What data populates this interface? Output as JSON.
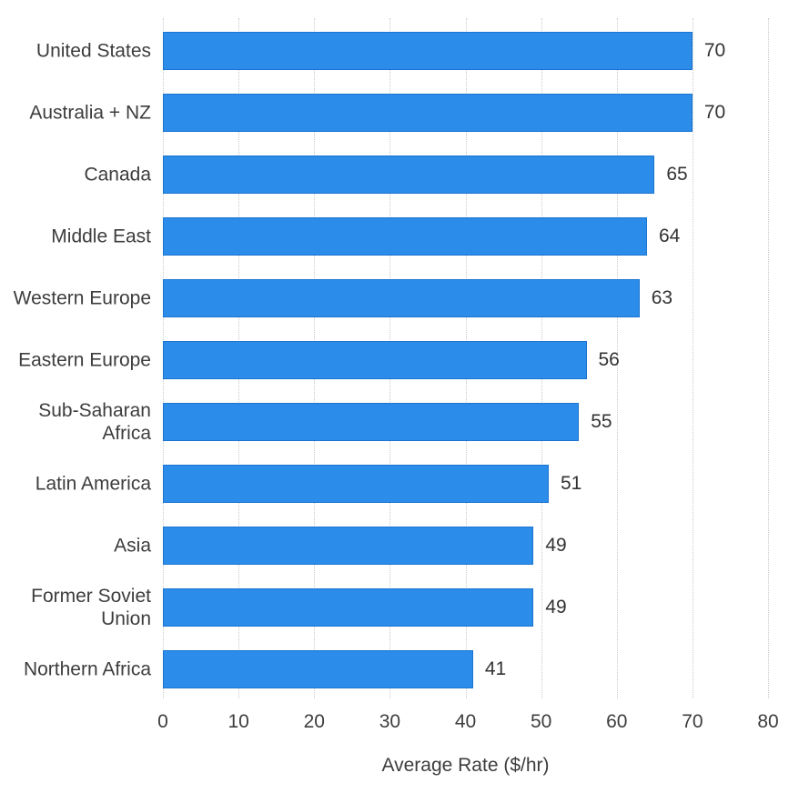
{
  "chart_data": {
    "type": "bar",
    "orientation": "horizontal",
    "categories": [
      "United States",
      "Australia + NZ",
      "Canada",
      "Middle East",
      "Western Europe",
      "Eastern Europe",
      "Sub-Saharan Africa",
      "Latin America",
      "Asia",
      "Former Soviet Union",
      "Northern Africa"
    ],
    "values": [
      70,
      70,
      65,
      64,
      63,
      56,
      55,
      51,
      49,
      49,
      41
    ],
    "title": "",
    "xlabel": "Average Rate ($/hr)",
    "ylabel": "",
    "xticks": [
      0,
      10,
      20,
      30,
      40,
      50,
      60,
      70,
      80
    ],
    "xlim": [
      0,
      80
    ],
    "grid": "vertical-dotted",
    "value_labels_shown": true,
    "colors": {
      "bar_fill": "#2b8ce9",
      "bar_border": "#1b74d0",
      "grid_line": "#c9c9c9",
      "text": "#3d3d3d",
      "value_text": "#333333",
      "background": "#ffffff"
    }
  }
}
